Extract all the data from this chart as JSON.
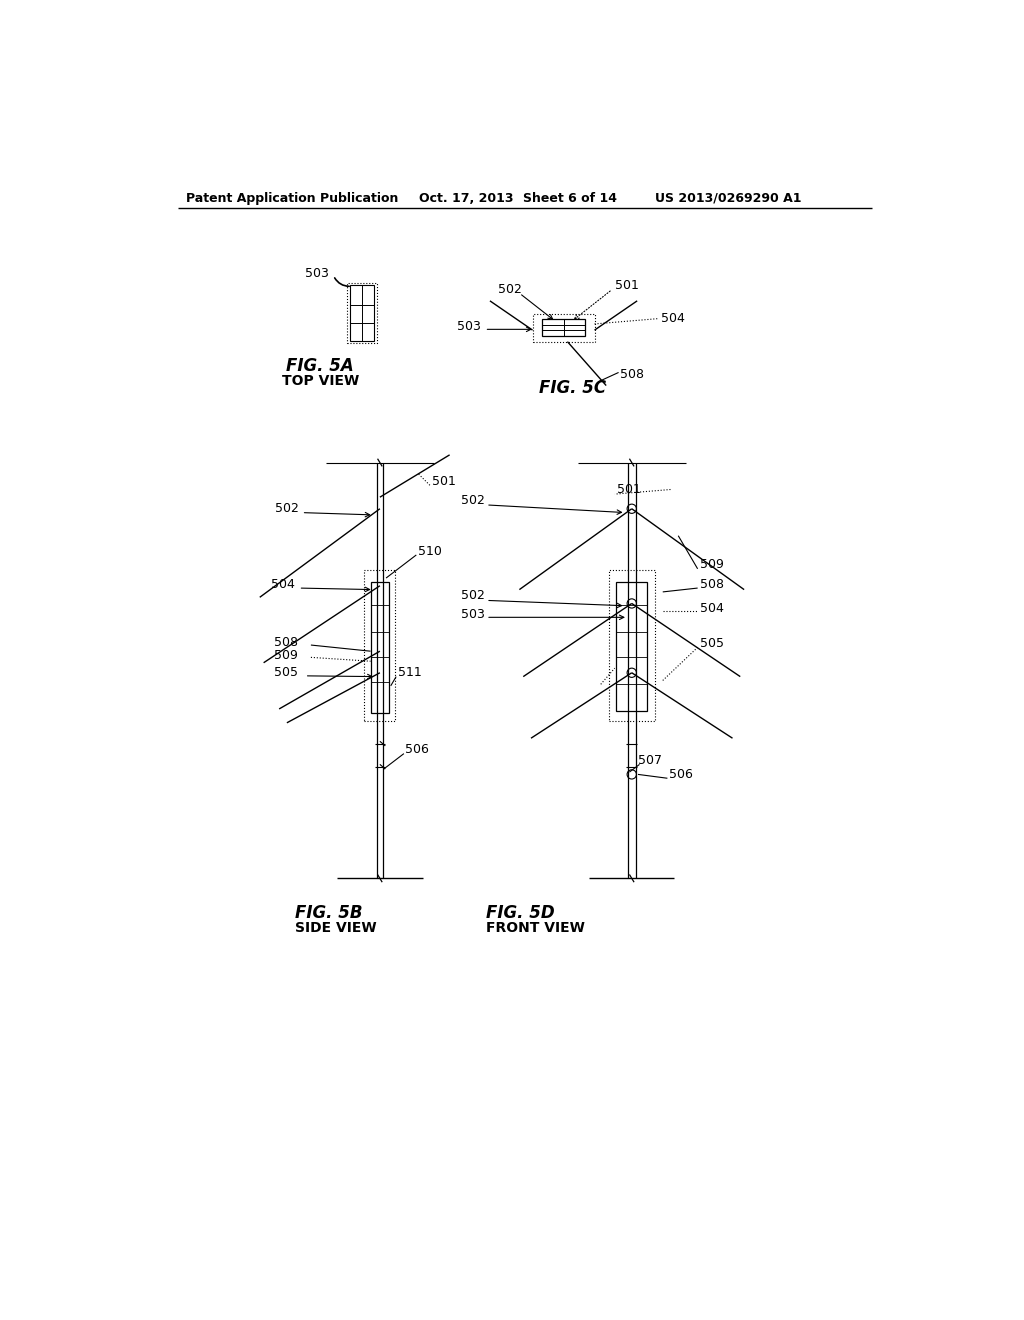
{
  "bg_color": "#ffffff",
  "header_text": "Patent Application Publication",
  "header_date": "Oct. 17, 2013",
  "header_sheet": "Sheet 6 of 14",
  "header_patent": "US 2013/0269290 A1",
  "fig5a_label": "FIG. 5A",
  "fig5a_sub": "TOP VIEW",
  "fig5b_label": "FIG. 5B",
  "fig5b_sub": "SIDE VIEW",
  "fig5c_label": "FIG. 5C",
  "fig5d_label": "FIG. 5D",
  "fig5d_sub": "FRONT VIEW"
}
